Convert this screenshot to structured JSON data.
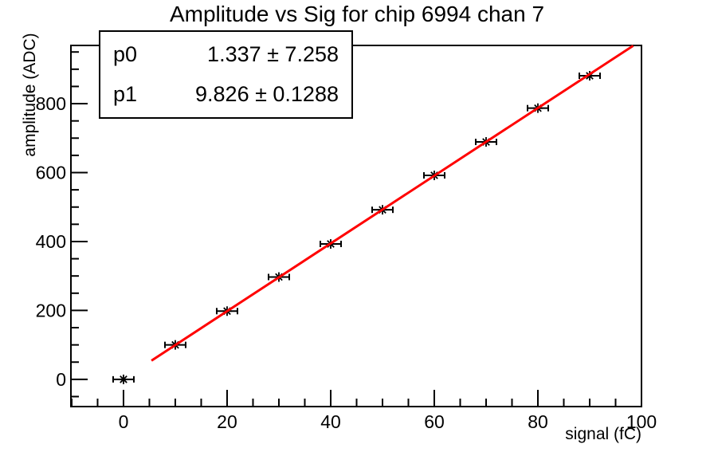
{
  "title": "Amplitude vs Sig for chip 6994 chan 7",
  "stats": {
    "rows": [
      {
        "name": "p0",
        "value": "1.337 ± 7.258"
      },
      {
        "name": "p1",
        "value": "9.826 ± 0.1288"
      }
    ]
  },
  "chart_data": {
    "type": "scatter",
    "title": "Amplitude vs Sig for chip 6994 chan 7",
    "xlabel": "signal (fC)",
    "ylabel": "amplitude (ADC)",
    "xlim": [
      -10.15,
      100
    ],
    "ylim": [
      -79,
      969
    ],
    "grid": false,
    "legend": "none",
    "x_major_ticks": [
      0,
      20,
      40,
      60,
      80,
      100
    ],
    "x_minor_step": 5,
    "y_major_ticks": [
      0,
      200,
      400,
      600,
      800
    ],
    "y_minor_step": 50,
    "points": {
      "x": [
        0,
        10,
        20,
        30,
        40,
        50,
        60,
        70,
        80,
        90
      ],
      "y": [
        0,
        100,
        198,
        297,
        393,
        492,
        592,
        689,
        787,
        881
      ],
      "xerr": 2
    },
    "fit": {
      "label": "linear",
      "p0": 1.337,
      "p1": 9.826,
      "x_start": 5.4,
      "x_end": 98.4
    },
    "marker": "asterisk",
    "colors": {
      "fit_line": "#ff0000",
      "axis": "#000000",
      "text": "#000000",
      "background": "#ffffff"
    }
  }
}
